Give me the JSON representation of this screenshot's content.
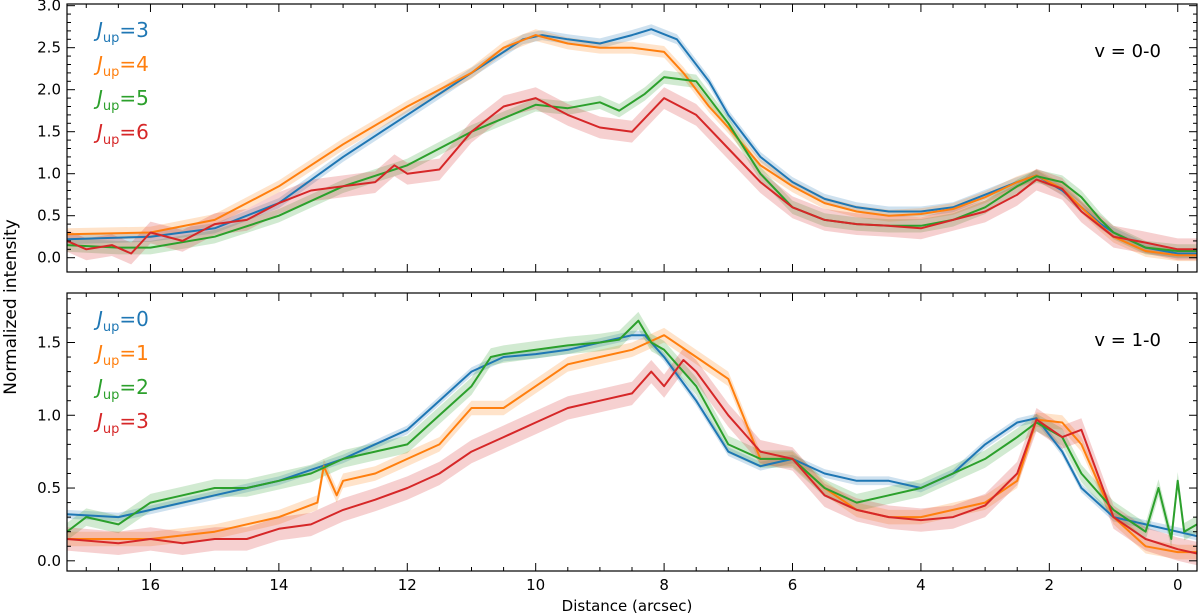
{
  "figure": {
    "ylabel": "Normalized intensity",
    "xlabel": "Distance (arcsec)"
  },
  "colors": {
    "blue": "#1f77b4",
    "orange": "#ff7f0e",
    "green": "#2ca02c",
    "red": "#d62728"
  },
  "chart_data": [
    {
      "type": "line",
      "panel": "top",
      "annotation": "v = 0-0",
      "xlabel": "Distance (arcsec)",
      "ylabel": "Normalized intensity",
      "xlim": [
        17.3,
        -0.3
      ],
      "ylim": [
        -0.17,
        3.02
      ],
      "xticks": [
        16,
        14,
        12,
        10,
        8,
        6,
        4,
        2,
        0
      ],
      "yticks": [
        0.0,
        0.5,
        1.0,
        1.5,
        2.0,
        2.5,
        3.0
      ],
      "ytick_labels": [
        "0.0",
        "0.5",
        "1.0",
        "1.5",
        "2.0",
        "2.5",
        "3.0"
      ],
      "xtick_labels": [],
      "legend_position": "top-left",
      "series": [
        {
          "name": "J_up=3",
          "legend_prefix": "J",
          "legend_sub": "up",
          "legend_suffix": "=3",
          "color": "#1f77b4",
          "band": 0.06,
          "x": [
            17.3,
            16,
            15,
            14,
            13,
            12,
            11,
            10.2,
            9.9,
            9.5,
            9,
            8.5,
            8.2,
            7.8,
            7.3,
            7,
            6.5,
            6,
            5.5,
            5,
            4.5,
            4,
            3.5,
            3,
            2.5,
            2.2,
            1.8,
            1.5,
            1.2,
            1,
            0.5,
            0,
            -0.3
          ],
          "y": [
            0.22,
            0.25,
            0.35,
            0.65,
            1.2,
            1.7,
            2.2,
            2.6,
            2.65,
            2.6,
            2.55,
            2.65,
            2.72,
            2.6,
            2.1,
            1.7,
            1.2,
            0.9,
            0.7,
            0.6,
            0.55,
            0.55,
            0.6,
            0.75,
            0.9,
            0.98,
            0.8,
            0.6,
            0.4,
            0.3,
            0.12,
            0.05,
            0.05
          ]
        },
        {
          "name": "J_up=4",
          "legend_prefix": "J",
          "legend_sub": "up",
          "legend_suffix": "=4",
          "color": "#ff7f0e",
          "band": 0.07,
          "x": [
            17.3,
            16,
            15,
            14,
            13,
            12,
            11,
            10.5,
            10,
            9.5,
            9,
            8.5,
            8,
            7.7,
            7.3,
            7,
            6.5,
            6,
            5.5,
            5,
            4.5,
            4,
            3.5,
            3,
            2.5,
            2.2,
            1.8,
            1.5,
            1.2,
            1,
            0.5,
            0,
            -0.3
          ],
          "y": [
            0.28,
            0.3,
            0.45,
            0.85,
            1.35,
            1.8,
            2.2,
            2.5,
            2.65,
            2.55,
            2.5,
            2.5,
            2.45,
            2.2,
            1.8,
            1.55,
            1.1,
            0.85,
            0.65,
            0.55,
            0.5,
            0.52,
            0.58,
            0.72,
            0.9,
            0.98,
            0.82,
            0.6,
            0.38,
            0.25,
            0.08,
            0.03,
            0.03
          ]
        },
        {
          "name": "J_up=5",
          "legend_prefix": "J",
          "legend_sub": "up",
          "legend_suffix": "=5",
          "color": "#2ca02c",
          "band": 0.08,
          "x": [
            17.3,
            16.5,
            16,
            15,
            14,
            13,
            12,
            11,
            10,
            9.5,
            9,
            8.7,
            8.3,
            8,
            7.5,
            7,
            6.5,
            6,
            5.5,
            5,
            4.5,
            4,
            3.5,
            3,
            2.5,
            2.2,
            1.8,
            1.5,
            1.2,
            1,
            0.5,
            0,
            -0.3
          ],
          "y": [
            0.15,
            0.12,
            0.12,
            0.25,
            0.5,
            0.85,
            1.1,
            1.5,
            1.82,
            1.78,
            1.85,
            1.75,
            1.95,
            2.15,
            2.1,
            1.6,
            1.0,
            0.6,
            0.45,
            0.4,
            0.38,
            0.38,
            0.45,
            0.6,
            0.85,
            0.97,
            0.9,
            0.72,
            0.45,
            0.3,
            0.12,
            0.08,
            0.08
          ]
        },
        {
          "name": "J_up=6",
          "legend_prefix": "J",
          "legend_sub": "up",
          "legend_suffix": "=6",
          "color": "#d62728",
          "band": 0.13,
          "x": [
            17.3,
            17,
            16.6,
            16.3,
            16,
            15.5,
            15,
            14.5,
            14,
            13.5,
            13,
            12.5,
            12.2,
            12,
            11.5,
            11,
            10.5,
            10,
            9.5,
            9,
            8.5,
            8,
            7.5,
            7,
            6.5,
            6,
            5.5,
            5,
            4.5,
            4,
            3.5,
            3,
            2.5,
            2.2,
            1.8,
            1.5,
            1,
            0.5,
            0,
            -0.3
          ],
          "y": [
            0.2,
            0.1,
            0.15,
            0.05,
            0.3,
            0.2,
            0.4,
            0.45,
            0.65,
            0.8,
            0.85,
            0.9,
            1.1,
            1.0,
            1.05,
            1.5,
            1.8,
            1.9,
            1.7,
            1.55,
            1.5,
            1.9,
            1.7,
            1.3,
            0.9,
            0.6,
            0.45,
            0.4,
            0.38,
            0.35,
            0.45,
            0.55,
            0.75,
            0.93,
            0.82,
            0.55,
            0.25,
            0.18,
            0.1,
            0.1
          ]
        }
      ]
    },
    {
      "type": "line",
      "panel": "bottom",
      "annotation": "v = 1-0",
      "xlabel": "Distance (arcsec)",
      "ylabel": "Normalized intensity",
      "xlim": [
        17.3,
        -0.3
      ],
      "ylim": [
        -0.07,
        1.84
      ],
      "xticks": [
        16,
        14,
        12,
        10,
        8,
        6,
        4,
        2,
        0
      ],
      "xtick_labels": [
        "16",
        "14",
        "12",
        "10",
        "8",
        "6",
        "4",
        "2",
        "0"
      ],
      "yticks": [
        0.0,
        0.5,
        1.0,
        1.5
      ],
      "ytick_labels": [
        "0.0",
        "0.5",
        "1.0",
        "1.5"
      ],
      "legend_position": "top-left",
      "series": [
        {
          "name": "J_up=0",
          "legend_prefix": "J",
          "legend_sub": "up",
          "legend_suffix": "=0",
          "color": "#1f77b4",
          "band": 0.03,
          "x": [
            17.3,
            16.5,
            16,
            15,
            14,
            13,
            12,
            11.5,
            11,
            10.5,
            10,
            9.5,
            9,
            8.5,
            8.3,
            8,
            7.5,
            7,
            6.5,
            6,
            5.5,
            5,
            4.5,
            4,
            3.5,
            3,
            2.5,
            2.2,
            1.8,
            1.5,
            1,
            0.5,
            0,
            -0.3
          ],
          "y": [
            0.32,
            0.3,
            0.35,
            0.45,
            0.55,
            0.7,
            0.9,
            1.1,
            1.3,
            1.4,
            1.42,
            1.45,
            1.5,
            1.55,
            1.55,
            1.4,
            1.1,
            0.75,
            0.65,
            0.7,
            0.6,
            0.55,
            0.55,
            0.5,
            0.6,
            0.8,
            0.95,
            0.98,
            0.75,
            0.5,
            0.3,
            0.25,
            0.2,
            0.17
          ]
        },
        {
          "name": "J_up=1",
          "legend_prefix": "J",
          "legend_sub": "up",
          "legend_suffix": "=1",
          "color": "#ff7f0e",
          "band": 0.05,
          "x": [
            17.3,
            16,
            15,
            14,
            13.4,
            13.3,
            13.1,
            13,
            12.5,
            12,
            11.5,
            11,
            10.5,
            10,
            9.5,
            9,
            8.5,
            8,
            7.5,
            7,
            6.5,
            6,
            5.5,
            5,
            4.5,
            4,
            3.5,
            3,
            2.5,
            2.2,
            1.8,
            1.5,
            1,
            0.5,
            0,
            -0.3
          ],
          "y": [
            0.15,
            0.15,
            0.2,
            0.3,
            0.4,
            0.65,
            0.45,
            0.55,
            0.6,
            0.7,
            0.8,
            1.05,
            1.05,
            1.2,
            1.35,
            1.4,
            1.45,
            1.55,
            1.4,
            1.25,
            0.7,
            0.7,
            0.5,
            0.35,
            0.3,
            0.3,
            0.35,
            0.4,
            0.55,
            0.97,
            0.95,
            0.8,
            0.3,
            0.1,
            0.06,
            0.06
          ]
        },
        {
          "name": "J_up=2",
          "legend_prefix": "J",
          "legend_sub": "up",
          "legend_suffix": "=2",
          "color": "#2ca02c",
          "band": 0.06,
          "x": [
            17.3,
            17,
            16.5,
            16,
            15.5,
            15,
            14.5,
            14,
            13.5,
            13,
            12.5,
            12,
            11.5,
            11,
            10.7,
            10.5,
            10,
            9.5,
            9,
            8.7,
            8.4,
            8.2,
            8,
            7.5,
            7,
            6.5,
            6,
            5.5,
            5,
            4.5,
            4,
            3.5,
            3,
            2.5,
            2.2,
            1.8,
            1.5,
            1,
            0.5,
            0.3,
            0.1,
            0,
            -0.1,
            -0.3
          ],
          "y": [
            0.2,
            0.3,
            0.25,
            0.4,
            0.45,
            0.5,
            0.5,
            0.55,
            0.6,
            0.7,
            0.75,
            0.8,
            1.0,
            1.2,
            1.4,
            1.42,
            1.45,
            1.48,
            1.5,
            1.52,
            1.65,
            1.5,
            1.45,
            1.2,
            0.8,
            0.7,
            0.7,
            0.5,
            0.4,
            0.45,
            0.5,
            0.6,
            0.7,
            0.85,
            0.95,
            0.85,
            0.6,
            0.35,
            0.2,
            0.5,
            0.15,
            0.55,
            0.2,
            0.25
          ]
        },
        {
          "name": "J_up=3",
          "legend_prefix": "J",
          "legend_sub": "up",
          "legend_suffix": "=3",
          "color": "#d62728",
          "band": 0.08,
          "x": [
            17.3,
            16.5,
            16,
            15.5,
            15,
            14.5,
            14,
            13.5,
            13,
            12.5,
            12,
            11.5,
            11,
            10.5,
            10,
            9.5,
            9,
            8.5,
            8.2,
            8,
            7.7,
            7.5,
            7,
            6.5,
            6,
            5.5,
            5,
            4.5,
            4,
            3.5,
            3,
            2.5,
            2.2,
            1.8,
            1.5,
            1,
            0.5,
            0,
            -0.3
          ],
          "y": [
            0.15,
            0.12,
            0.15,
            0.12,
            0.15,
            0.15,
            0.22,
            0.25,
            0.35,
            0.42,
            0.5,
            0.6,
            0.75,
            0.85,
            0.95,
            1.05,
            1.1,
            1.15,
            1.3,
            1.2,
            1.38,
            1.3,
            1.0,
            0.75,
            0.7,
            0.45,
            0.35,
            0.3,
            0.28,
            0.3,
            0.38,
            0.6,
            0.97,
            0.85,
            0.9,
            0.3,
            0.15,
            0.08,
            0.05
          ]
        }
      ]
    }
  ]
}
